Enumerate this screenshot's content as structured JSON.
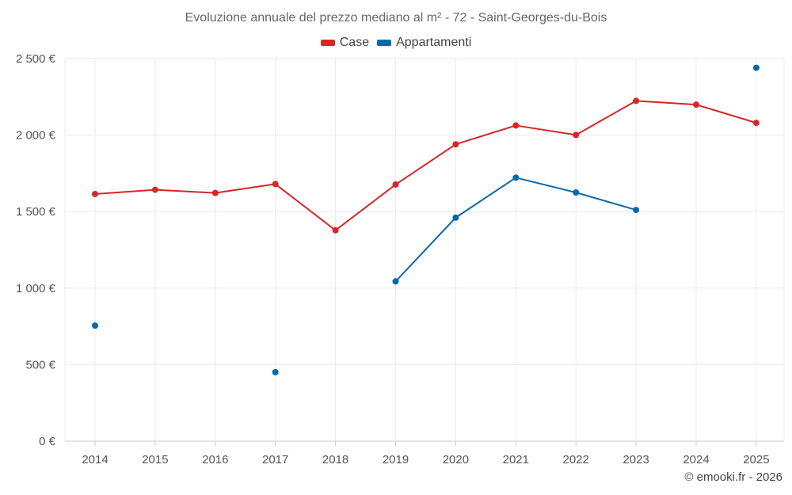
{
  "chart_data": {
    "type": "line",
    "title": "Evoluzione annuale del prezzo mediano al m² - 72 - Saint-Georges-du-Bois",
    "xlabel": "",
    "ylabel": "",
    "x": [
      "2014",
      "2015",
      "2016",
      "2017",
      "2018",
      "2019",
      "2020",
      "2021",
      "2022",
      "2023",
      "2024",
      "2025"
    ],
    "ylim": [
      0,
      2500
    ],
    "yticks": [
      0,
      500,
      1000,
      1500,
      2000,
      2500
    ],
    "ytick_labels": [
      "0 €",
      "500 €",
      "1 000 €",
      "1 500 €",
      "2 000 €",
      "2 500 €"
    ],
    "grid": true,
    "legend_position": "top-center",
    "series": [
      {
        "name": "Case",
        "color": "#d62728",
        "values": [
          1615,
          1643,
          1622,
          1680,
          1378,
          1677,
          1940,
          2063,
          2001,
          2224,
          2199,
          2080
        ]
      },
      {
        "name": "Appartamenti",
        "color": "#0868a8",
        "values": [
          755,
          null,
          null,
          451,
          null,
          1044,
          1461,
          1722,
          1625,
          1511,
          null,
          2440
        ]
      }
    ]
  },
  "credit": "© emooki.fr - 2026"
}
